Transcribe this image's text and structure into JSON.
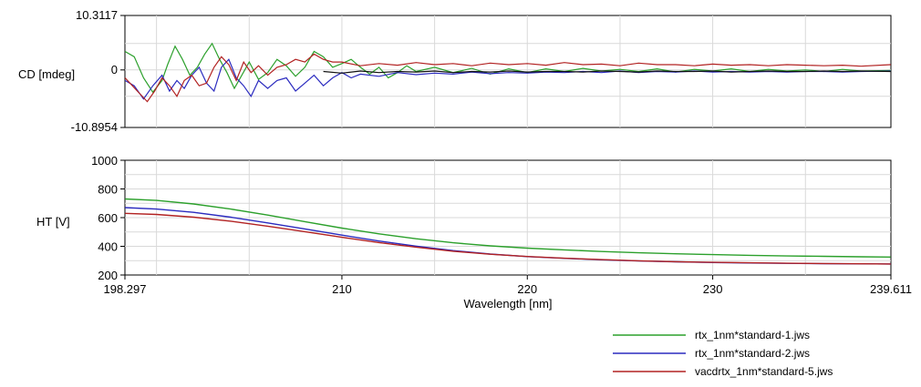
{
  "chart_data": [
    {
      "type": "line",
      "ylabel": "CD [mdeg]",
      "xlim": [
        198.297,
        239.611
      ],
      "ylim": [
        -10.8954,
        10.3117
      ],
      "yticks": [
        "10.3117",
        "0",
        "-10.8954"
      ],
      "series": [
        {
          "name": "rtx_1nm*standard-1.jws",
          "color": "#2ca02c",
          "x": [
            198.3,
            198.8,
            199.3,
            199.8,
            200.3,
            200.6,
            201.0,
            201.4,
            201.8,
            202.2,
            202.6,
            203.0,
            203.4,
            203.8,
            204.2,
            204.6,
            205.0,
            205.5,
            206.0,
            206.5,
            207.0,
            207.5,
            208.0,
            208.5,
            209.0,
            209.5,
            210.0,
            210.5,
            211.0,
            211.5,
            212.0,
            212.5,
            213.0,
            213.5,
            214.0,
            215.0,
            216.0,
            217.0,
            218.0,
            219.0,
            220.0,
            221.0,
            222.0,
            223.0,
            224.0,
            225.0,
            226.0,
            227.0,
            228.0,
            229.0,
            230.0,
            231.0,
            232.0,
            233.0,
            234.0,
            235.0,
            236.0,
            237.0,
            238.0,
            239.6
          ],
          "values": [
            3.5,
            2.5,
            -1.5,
            -4.2,
            -2.0,
            1.0,
            4.5,
            2.0,
            -1.0,
            0.5,
            3.0,
            5.0,
            2.0,
            -0.5,
            -3.5,
            -1.0,
            1.5,
            -1.8,
            -0.5,
            2.0,
            0.8,
            -1.2,
            0.5,
            3.5,
            2.5,
            0.5,
            1.2,
            2.0,
            0.5,
            -0.8,
            0.5,
            -1.5,
            -0.5,
            0.8,
            -0.3,
            0.5,
            -0.5,
            0.3,
            -0.8,
            0.2,
            -0.5,
            0.2,
            -0.3,
            0.3,
            -0.2,
            0.1,
            -0.3,
            0.2,
            -0.4,
            0.1,
            -0.2,
            0.2,
            -0.3,
            0.1,
            -0.2,
            0.0,
            -0.3,
            0.1,
            -0.2,
            -0.1
          ]
        },
        {
          "name": "rtx_1nm*standard-2.jws",
          "color": "#2b2bbf",
          "x": [
            198.3,
            198.8,
            199.3,
            199.8,
            200.3,
            200.7,
            201.1,
            201.5,
            201.9,
            202.3,
            202.7,
            203.1,
            203.5,
            203.9,
            204.3,
            204.7,
            205.1,
            205.5,
            206.0,
            206.5,
            207.0,
            207.5,
            208.0,
            208.5,
            209.0,
            209.5,
            210.0,
            210.5,
            211.0,
            212.0,
            213.0,
            214.0,
            215.0,
            216.0,
            217.0,
            218.0,
            219.0,
            220.0,
            221.0,
            222.0,
            223.0,
            224.0,
            225.0,
            226.0,
            227.0,
            228.0,
            229.0,
            230.0,
            231.0,
            232.0,
            233.0,
            234.0,
            235.0,
            236.0,
            237.0,
            238.0,
            239.6
          ],
          "values": [
            -2.0,
            -3.0,
            -5.5,
            -3.0,
            -1.0,
            -4.0,
            -2.0,
            -3.5,
            -1.0,
            0.5,
            -2.5,
            -4.0,
            0.5,
            2.0,
            -1.5,
            -3.0,
            -5.0,
            -2.0,
            -3.5,
            -2.0,
            -1.5,
            -4.0,
            -2.5,
            -1.0,
            -3.0,
            -1.5,
            -0.5,
            -1.5,
            -0.8,
            -1.2,
            -0.5,
            -0.9,
            -0.6,
            -0.8,
            -0.4,
            -0.7,
            -0.5,
            -0.6,
            -0.4,
            -0.5,
            -0.3,
            -0.5,
            -0.2,
            -0.5,
            -0.3,
            -0.4,
            -0.2,
            -0.4,
            -0.3,
            -0.4,
            -0.3,
            -0.4,
            -0.3,
            -0.3,
            -0.4,
            -0.3,
            -0.2
          ]
        },
        {
          "name": "vacdrtx_1nm*standard-5.jws",
          "color": "#b22222",
          "x": [
            198.3,
            198.7,
            199.1,
            199.5,
            199.9,
            200.3,
            200.7,
            201.1,
            201.5,
            201.9,
            202.3,
            202.7,
            203.1,
            203.5,
            203.9,
            204.3,
            204.7,
            205.1,
            205.5,
            206.0,
            206.5,
            207.0,
            207.5,
            208.0,
            208.5,
            209.0,
            209.5,
            210.0,
            211.0,
            212.0,
            213.0,
            214.0,
            215.0,
            216.0,
            217.0,
            218.0,
            219.0,
            220.0,
            221.0,
            222.0,
            223.0,
            224.0,
            225.0,
            226.0,
            227.0,
            228.0,
            229.0,
            230.0,
            231.0,
            232.0,
            233.0,
            234.0,
            235.0,
            236.0,
            237.0,
            238.0,
            239.6
          ],
          "values": [
            -1.5,
            -3.0,
            -4.5,
            -6.0,
            -4.0,
            -1.5,
            -3.0,
            -5.0,
            -2.0,
            -1.0,
            -3.0,
            -2.5,
            0.5,
            2.5,
            1.0,
            -2.0,
            1.5,
            -0.5,
            0.8,
            -1.0,
            0.5,
            1.0,
            2.0,
            1.5,
            3.0,
            2.0,
            1.5,
            1.5,
            0.8,
            1.2,
            0.9,
            1.4,
            1.0,
            1.2,
            0.8,
            1.3,
            1.0,
            1.2,
            0.9,
            1.4,
            1.0,
            1.1,
            0.8,
            1.3,
            1.0,
            1.0,
            0.8,
            1.1,
            0.9,
            1.0,
            0.8,
            1.0,
            0.9,
            0.8,
            0.9,
            0.7,
            1.0
          ]
        },
        {
          "name": "",
          "color": "#111111",
          "x": [
            209.0,
            210.0,
            211.0,
            212.0,
            213.0,
            214.0,
            215.0,
            216.0,
            217.0,
            218.0,
            219.0,
            220.0,
            221.0,
            222.0,
            223.0,
            224.0,
            225.0,
            226.0,
            227.0,
            228.0,
            229.0,
            230.0,
            231.0,
            232.0,
            233.0,
            234.0,
            235.0,
            236.0,
            237.0,
            238.0,
            239.6
          ],
          "values": [
            -0.3,
            -0.6,
            -0.2,
            -0.5,
            -0.3,
            -0.4,
            -0.2,
            -0.5,
            -0.3,
            -0.4,
            -0.2,
            -0.4,
            -0.3,
            -0.3,
            -0.4,
            -0.2,
            -0.3,
            -0.4,
            -0.2,
            -0.3,
            -0.3,
            -0.2,
            -0.4,
            -0.3,
            -0.2,
            -0.3,
            -0.3,
            -0.2,
            -0.3,
            -0.2,
            -0.3
          ]
        }
      ]
    },
    {
      "type": "line",
      "ylabel": "HT [V]",
      "xlabel": "Wavelength [nm]",
      "xlim": [
        198.297,
        239.611
      ],
      "ylim": [
        200,
        1000
      ],
      "xticks": [
        "198.297",
        "210",
        "220",
        "230",
        "239.611"
      ],
      "yticks": [
        "1000",
        "800",
        "600",
        "400",
        "200"
      ],
      "series": [
        {
          "name": "rtx_1nm*standard-1.jws",
          "color": "#2ca02c",
          "x": [
            198.3,
            200,
            202,
            204,
            206,
            208,
            210,
            212,
            214,
            216,
            218,
            220,
            222,
            224,
            226,
            228,
            230,
            232,
            234,
            236,
            238,
            239.6
          ],
          "values": [
            730,
            720,
            695,
            660,
            618,
            572,
            527,
            487,
            453,
            425,
            403,
            387,
            375,
            364,
            355,
            348,
            342,
            337,
            333,
            330,
            327,
            325
          ]
        },
        {
          "name": "rtx_1nm*standard-2.jws",
          "color": "#2b2bbf",
          "x": [
            198.3,
            200,
            202,
            204,
            206,
            208,
            210,
            212,
            214,
            216,
            218,
            220,
            222,
            224,
            226,
            228,
            230,
            232,
            234,
            236,
            238,
            239.6
          ],
          "values": [
            670,
            660,
            637,
            603,
            563,
            521,
            478,
            437,
            401,
            370,
            346,
            328,
            316,
            306,
            298,
            292,
            287,
            284,
            281,
            279,
            278,
            277
          ]
        },
        {
          "name": "vacdrtx_1nm*standard-5.jws",
          "color": "#b22222",
          "x": [
            198.3,
            200,
            202,
            204,
            206,
            208,
            210,
            212,
            214,
            216,
            218,
            220,
            222,
            224,
            226,
            228,
            230,
            232,
            234,
            236,
            238,
            239.6
          ],
          "values": [
            630,
            622,
            603,
            575,
            540,
            502,
            463,
            426,
            394,
            366,
            345,
            329,
            317,
            307,
            299,
            293,
            288,
            285,
            282,
            280,
            278,
            277
          ]
        }
      ]
    }
  ],
  "legend": [
    {
      "label": "rtx_1nm*standard-1.jws",
      "color": "#2ca02c"
    },
    {
      "label": "rtx_1nm*standard-2.jws",
      "color": "#2b2bbf"
    },
    {
      "label": "vacdrtx_1nm*standard-5.jws",
      "color": "#b22222"
    }
  ]
}
